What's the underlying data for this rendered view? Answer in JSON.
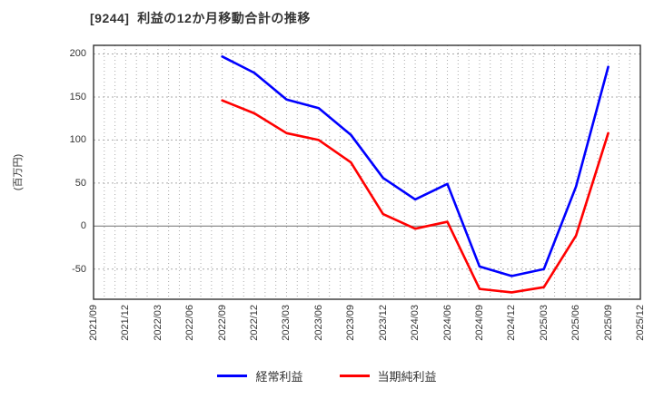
{
  "title": "[9244]  利益の12か月移動合計の推移",
  "y_axis_label": "(百万円)",
  "legend": [
    {
      "label": "経常利益",
      "color": "#0000ff"
    },
    {
      "label": "当期純利益",
      "color": "#ff0000"
    }
  ],
  "chart_data": {
    "type": "line",
    "title": "[9244]  利益の12か月移動合計の推移",
    "ylabel": "(百万円)",
    "x": [
      "2021/09",
      "2021/12",
      "2022/03",
      "2022/06",
      "2022/09",
      "2022/12",
      "2023/03",
      "2023/06",
      "2023/09",
      "2023/12",
      "2024/03",
      "2024/06",
      "2024/09",
      "2024/12",
      "2025/03",
      "2025/06",
      "2025/09",
      "2025/12"
    ],
    "series": [
      {
        "name": "経常利益",
        "color": "#0000ff",
        "start_index": 4,
        "x": [
          "2022/09",
          "2022/12",
          "2023/03",
          "2023/06",
          "2023/09",
          "2023/12",
          "2024/03",
          "2024/06",
          "2024/09",
          "2024/12",
          "2025/03",
          "2025/06",
          "2025/09"
        ],
        "values": [
          197,
          178,
          147,
          137,
          106,
          56,
          31,
          49,
          -47,
          -58,
          -50,
          46,
          185
        ]
      },
      {
        "name": "当期純利益",
        "color": "#ff0000",
        "start_index": 4,
        "x": [
          "2022/09",
          "2022/12",
          "2023/03",
          "2023/06",
          "2023/09",
          "2023/12",
          "2024/03",
          "2024/06",
          "2024/09",
          "2024/12",
          "2025/03",
          "2025/06",
          "2025/09"
        ],
        "values": [
          146,
          131,
          108,
          100,
          74,
          14,
          -3,
          5,
          -73,
          -77,
          -71,
          -11,
          108
        ]
      }
    ],
    "ylim": [
      -85,
      210
    ],
    "y_ticks": [
      200,
      150,
      100,
      50,
      0,
      -50
    ],
    "grid": true,
    "minor_vertical_gridlines": "monthly",
    "legend_position": "bottom"
  },
  "colors": {
    "background": "#ffffff",
    "grid": "#aaaaaa",
    "zero_line": "#808080",
    "axis_border": "#333333",
    "text": "#333333"
  }
}
